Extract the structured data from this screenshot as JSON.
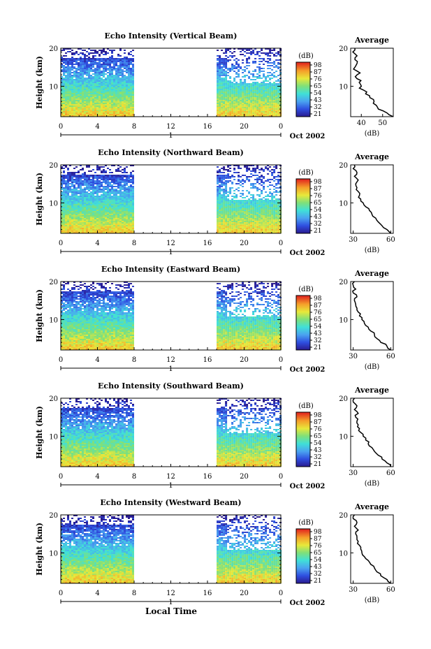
{
  "figure": {
    "colorbar_unit": "(dB)",
    "colorbar_ticks": [
      "98",
      "87",
      "76",
      "65",
      "54",
      "43",
      "32",
      "21"
    ],
    "colorbar_range": [
      21,
      98
    ],
    "y_label": "Height (km)",
    "x_ticks": [
      "0",
      "4",
      "8",
      "12",
      "16",
      "20",
      "0"
    ],
    "date_label": "Oct 2002",
    "day_label": "1",
    "x_axis_title": "Local Time",
    "avg_title": "Average",
    "avg_xlabel": "(dB)",
    "y_ticks": [
      "20",
      "10"
    ]
  },
  "chart_data": [
    {
      "type": "heatmap",
      "title": "Echo Intensity (Vertical Beam)",
      "ylabel": "Height (km)",
      "xlabel": "Local Time",
      "xlim": [
        0,
        24
      ],
      "ylim": [
        2,
        20
      ],
      "color_range_db": [
        21,
        98
      ],
      "data_present_hours": [
        [
          0,
          8
        ],
        [
          17,
          24
        ]
      ],
      "profile_type": "line",
      "profile_title": "Average",
      "profile_xlabel": "(dB)",
      "profile_xlim": [
        35,
        55
      ],
      "profile_xticks": [
        "40",
        "50"
      ],
      "profile": {
        "height_km": [
          2,
          3,
          4,
          5,
          6,
          7,
          8,
          9,
          10,
          11,
          12,
          13,
          14,
          15,
          16,
          17,
          18,
          19,
          20
        ],
        "db": [
          55,
          52,
          48,
          47,
          46,
          44,
          42,
          41,
          40,
          39,
          38,
          38,
          38,
          37,
          38,
          37,
          38,
          36,
          37
        ]
      }
    },
    {
      "type": "heatmap",
      "title": "Echo Intensity (Northward Beam)",
      "ylabel": "Height (km)",
      "xlabel": "Local Time",
      "xlim": [
        0,
        24
      ],
      "ylim": [
        2,
        20
      ],
      "color_range_db": [
        21,
        98
      ],
      "data_present_hours": [
        [
          0,
          8
        ],
        [
          17,
          24
        ]
      ],
      "profile_type": "line",
      "profile_title": "Average",
      "profile_xlabel": "(dB)",
      "profile_xlim": [
        28,
        62
      ],
      "profile_xticks": [
        "30",
        "60"
      ],
      "profile": {
        "height_km": [
          2,
          3,
          4,
          5,
          6,
          7,
          8,
          9,
          10,
          11,
          12,
          13,
          14,
          15,
          16,
          17,
          18,
          19,
          20
        ],
        "db": [
          60,
          57,
          53,
          50,
          48,
          45,
          43,
          40,
          38,
          36,
          35,
          34,
          33,
          32,
          34,
          31,
          33,
          30,
          31
        ]
      }
    },
    {
      "type": "heatmap",
      "title": "Echo Intensity (Eastward Beam)",
      "ylabel": "Height (km)",
      "xlabel": "Local Time",
      "xlim": [
        0,
        24
      ],
      "ylim": [
        2,
        20
      ],
      "color_range_db": [
        21,
        98
      ],
      "data_present_hours": [
        [
          0,
          8
        ],
        [
          17,
          24
        ]
      ],
      "profile_type": "line",
      "profile_title": "Average",
      "profile_xlabel": "(dB)",
      "profile_xlim": [
        28,
        62
      ],
      "profile_xticks": [
        "30",
        "60"
      ],
      "profile": {
        "height_km": [
          2,
          3,
          4,
          5,
          6,
          7,
          8,
          9,
          10,
          11,
          12,
          13,
          14,
          15,
          16,
          17,
          18,
          19,
          20
        ],
        "db": [
          60,
          57,
          52,
          49,
          47,
          44,
          42,
          39,
          37,
          35,
          34,
          33,
          32,
          31,
          33,
          30,
          32,
          30,
          31
        ]
      }
    },
    {
      "type": "heatmap",
      "title": "Echo Intensity (Southward Beam)",
      "ylabel": "Height (km)",
      "xlabel": "Local Time",
      "xlim": [
        0,
        24
      ],
      "ylim": [
        2,
        20
      ],
      "color_range_db": [
        21,
        98
      ],
      "data_present_hours": [
        [
          0,
          8
        ],
        [
          17,
          24
        ]
      ],
      "profile_type": "line",
      "profile_title": "Average",
      "profile_xlabel": "(dB)",
      "profile_xlim": [
        28,
        62
      ],
      "profile_xticks": [
        "30",
        "60"
      ],
      "profile": {
        "height_km": [
          2,
          3,
          4,
          5,
          6,
          7,
          8,
          9,
          10,
          11,
          12,
          13,
          14,
          15,
          16,
          17,
          18,
          19,
          20
        ],
        "db": [
          60,
          57,
          53,
          50,
          47,
          45,
          42,
          40,
          38,
          36,
          35,
          34,
          33,
          32,
          34,
          31,
          33,
          30,
          31
        ]
      }
    },
    {
      "type": "heatmap",
      "title": "Echo Intensity (Westward Beam)",
      "ylabel": "Height (km)",
      "xlabel": "Local Time",
      "xlim": [
        0,
        24
      ],
      "ylim": [
        2,
        20
      ],
      "color_range_db": [
        21,
        98
      ],
      "data_present_hours": [
        [
          0,
          8
        ],
        [
          17,
          24
        ]
      ],
      "profile_type": "line",
      "profile_title": "Average",
      "profile_xlabel": "(dB)",
      "profile_xlim": [
        28,
        62
      ],
      "profile_xticks": [
        "30",
        "60"
      ],
      "profile": {
        "height_km": [
          2,
          3,
          4,
          5,
          6,
          7,
          8,
          9,
          10,
          11,
          12,
          13,
          14,
          15,
          16,
          17,
          18,
          19,
          20
        ],
        "db": [
          60,
          57,
          52,
          49,
          47,
          44,
          42,
          39,
          37,
          36,
          35,
          34,
          33,
          32,
          34,
          31,
          33,
          30,
          31
        ]
      }
    }
  ]
}
